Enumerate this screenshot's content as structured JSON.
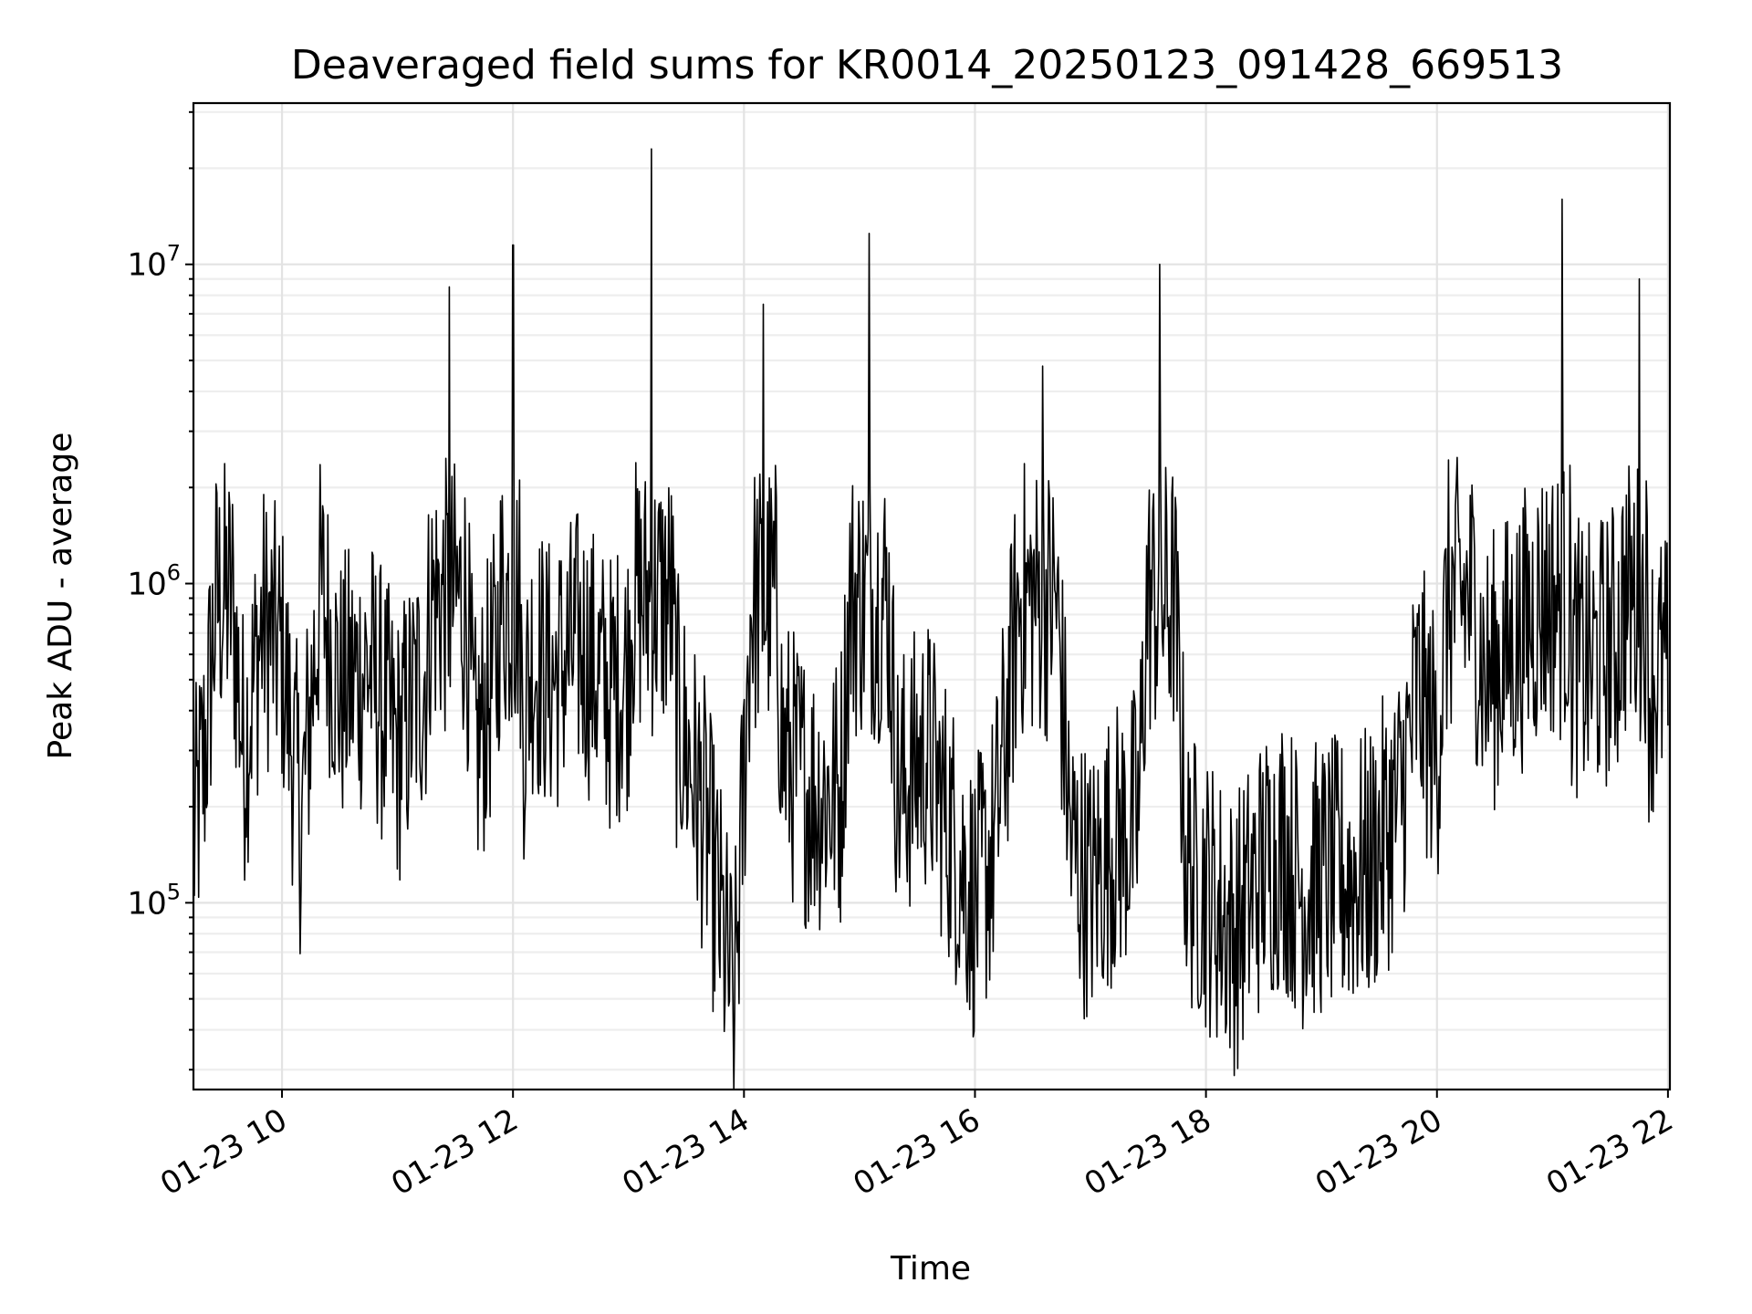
{
  "chart_data": {
    "type": "line",
    "title": "Deaveraged field sums for KR0014_20250123_091428_669513",
    "xlabel": "Time",
    "ylabel": "Peak ADU - average",
    "yscale": "log",
    "x_range": [
      "2025-01-23 09:14",
      "2025-01-23 22:01"
    ],
    "ylim": [
      26000,
      32000000
    ],
    "x_ticks": [
      {
        "t": "2025-01-23 10:00",
        "label": "01-23 10"
      },
      {
        "t": "2025-01-23 12:00",
        "label": "01-23 12"
      },
      {
        "t": "2025-01-23 14:00",
        "label": "01-23 14"
      },
      {
        "t": "2025-01-23 16:00",
        "label": "01-23 16"
      },
      {
        "t": "2025-01-23 18:00",
        "label": "01-23 18"
      },
      {
        "t": "2025-01-23 20:00",
        "label": "01-23 20"
      },
      {
        "t": "2025-01-23 22:00",
        "label": "01-23 22"
      }
    ],
    "y_ticks": [
      {
        "value": 100000,
        "base": "10",
        "exp": "5"
      },
      {
        "value": 1000000,
        "base": "10",
        "exp": "6"
      },
      {
        "value": 10000000,
        "base": "10",
        "exp": "7"
      }
    ],
    "grid": true,
    "line_color": "#000000",
    "series": [
      {
        "x": [
          "2025-01-23 09:14",
          "2025-01-23 09:20",
          "2025-01-23 09:30",
          "2025-01-23 09:40",
          "2025-01-23 09:50",
          "2025-01-23 10:00",
          "2025-01-23 10:10",
          "2025-01-23 10:20",
          "2025-01-23 10:30",
          "2025-01-23 10:45",
          "2025-01-23 11:00",
          "2025-01-23 11:15",
          "2025-01-23 11:27",
          "2025-01-23 11:40",
          "2025-01-23 11:52",
          "2025-01-23 12:00",
          "2025-01-23 12:05",
          "2025-01-23 12:10",
          "2025-01-23 12:20",
          "2025-01-23 12:35",
          "2025-01-23 12:50",
          "2025-01-23 13:00",
          "2025-01-23 13:12",
          "2025-01-23 13:25",
          "2025-01-23 13:40",
          "2025-01-23 13:55",
          "2025-01-23 14:10",
          "2025-01-23 14:20",
          "2025-01-23 14:35",
          "2025-01-23 14:50",
          "2025-01-23 15:05",
          "2025-01-23 15:20",
          "2025-01-23 15:35",
          "2025-01-23 15:50",
          "2025-01-23 16:00",
          "2025-01-23 16:10",
          "2025-01-23 16:35",
          "2025-01-23 16:50",
          "2025-01-23 17:00",
          "2025-01-23 17:10",
          "2025-01-23 17:25",
          "2025-01-23 17:36",
          "2025-01-23 17:50",
          "2025-01-23 18:00",
          "2025-01-23 18:15",
          "2025-01-23 18:30",
          "2025-01-23 18:40",
          "2025-01-23 18:50",
          "2025-01-23 19:00",
          "2025-01-23 19:15",
          "2025-01-23 19:25",
          "2025-01-23 19:40",
          "2025-01-23 19:50",
          "2025-01-23 20:00",
          "2025-01-23 20:10",
          "2025-01-23 20:25",
          "2025-01-23 20:40",
          "2025-01-23 20:55",
          "2025-01-23 21:05",
          "2025-01-23 21:10",
          "2025-01-23 21:20",
          "2025-01-23 21:35",
          "2025-01-23 21:45",
          "2025-01-23 21:50",
          "2025-01-23 22:00"
        ],
        "values": [
          150000,
          300000,
          1900000,
          300000,
          750000,
          600000,
          180000,
          1000000,
          450000,
          550000,
          300000,
          550000,
          8500000,
          280000,
          600000,
          11500000,
          350000,
          600000,
          500000,
          650000,
          450000,
          550000,
          23000000,
          400000,
          180000,
          45000,
          7500000,
          300000,
          220000,
          220000,
          12500000,
          220000,
          300000,
          150000,
          100000,
          150000,
          4800000,
          150000,
          110000,
          150000,
          180000,
          10000000,
          130000,
          110000,
          80000,
          130000,
          150000,
          110000,
          120000,
          120000,
          130000,
          200000,
          450000,
          300000,
          2000000,
          500000,
          650000,
          900000,
          16000000,
          600000,
          550000,
          700000,
          9000000,
          500000,
          550000
        ]
      }
    ]
  }
}
